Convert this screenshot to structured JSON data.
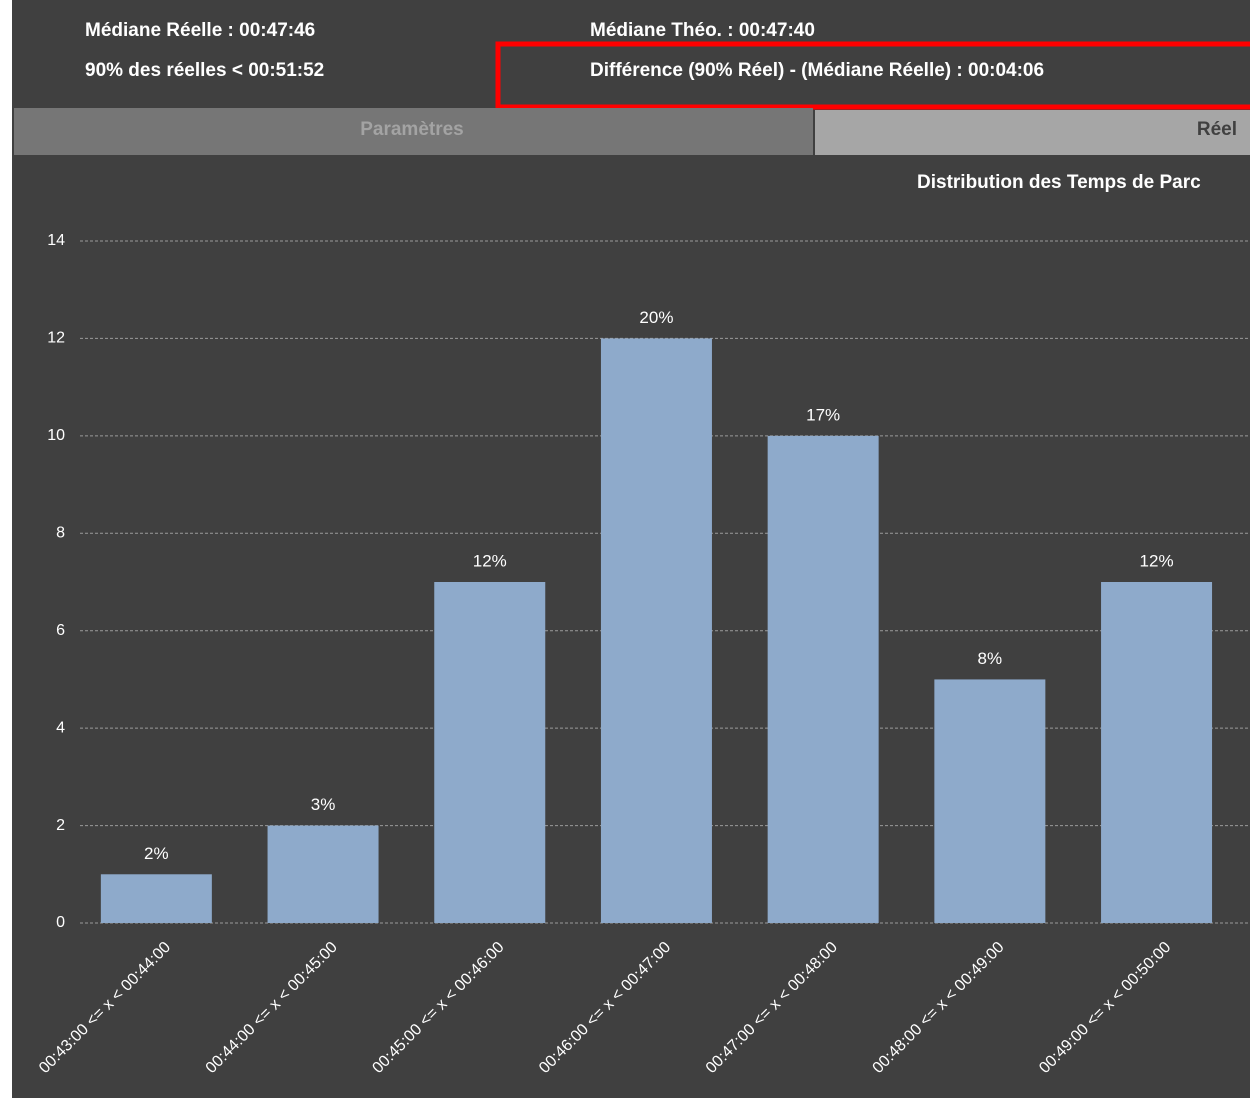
{
  "header": {
    "median_real": "Médiane Réelle : 00:47:46",
    "p90_real": "90% des réelles < 00:51:52",
    "median_theo": "Médiane Théo. : 00:47:40",
    "difference": "Différence (90% Réel) - (Médiane Réelle) : 00:04:06"
  },
  "tabs": [
    "Paramètres",
    "Réel"
  ],
  "chart_data": {
    "type": "bar",
    "title": "Distribution des Temps de Parc",
    "categories": [
      "00:43:00 <= x < 00:44:00",
      "00:44:00 <= x < 00:45:00",
      "00:45:00 <= x < 00:46:00",
      "00:46:00 <= x < 00:47:00",
      "00:47:00 <= x < 00:48:00",
      "00:48:00 <= x < 00:49:00",
      "00:49:00 <= x < 00:50:00"
    ],
    "values": [
      1,
      2,
      7,
      12,
      10,
      5,
      7
    ],
    "value_labels": [
      "2%",
      "3%",
      "12%",
      "20%",
      "17%",
      "8%",
      "12%"
    ],
    "color": "#8eaacb",
    "ylim": [
      0,
      14
    ],
    "yticks": [
      0,
      2,
      4,
      6,
      8,
      10,
      12,
      14
    ],
    "grid": true
  }
}
